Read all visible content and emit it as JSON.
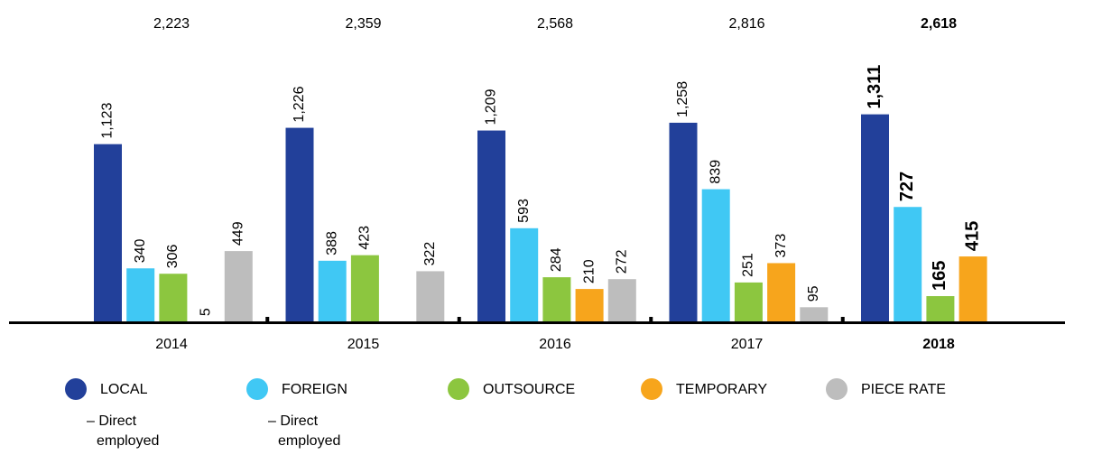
{
  "chart_data": {
    "type": "bar",
    "categories": [
      "2014",
      "2015",
      "2016",
      "2017",
      "2018"
    ],
    "emphasis": "2018",
    "totals": [
      2223,
      2359,
      2568,
      2816,
      2618
    ],
    "totals_labels": [
      "2,223",
      "2,359",
      "2,568",
      "2,816",
      "2,618"
    ],
    "ylim": [
      0,
      1400
    ],
    "series": [
      {
        "name": "LOCAL",
        "note": "– Direct employed",
        "color": "#22409a",
        "values": [
          1123,
          1226,
          1209,
          1258,
          1311
        ],
        "value_labels": [
          "1,123",
          "1,226",
          "1,209",
          "1,258",
          "1,311"
        ]
      },
      {
        "name": "FOREIGN",
        "note": "– Direct employed",
        "color": "#40c8f4",
        "values": [
          340,
          388,
          593,
          839,
          727
        ],
        "value_labels": [
          "340",
          "388",
          "593",
          "839",
          "727"
        ]
      },
      {
        "name": "OUTSOURCE",
        "color": "#8cc63f",
        "values": [
          306,
          423,
          284,
          251,
          165
        ],
        "value_labels": [
          "306",
          "423",
          "284",
          "251",
          "165"
        ]
      },
      {
        "name": "TEMPORARY",
        "color": "#f7a51c",
        "values": [
          5,
          null,
          210,
          373,
          415
        ],
        "value_labels": [
          "5",
          null,
          "210",
          "373",
          "415"
        ]
      },
      {
        "name": "PIECE RATE",
        "color": "#bdbdbd",
        "values": [
          449,
          322,
          272,
          95,
          null
        ],
        "value_labels": [
          "449",
          "322",
          "272",
          "95",
          null
        ]
      }
    ]
  }
}
